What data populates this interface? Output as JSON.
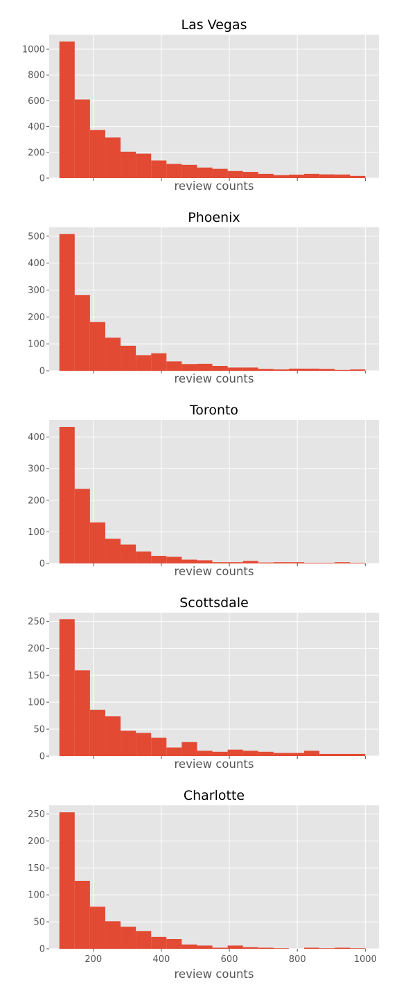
{
  "chart_data": [
    {
      "type": "bar",
      "title": "Las Vegas",
      "xlabel": "review counts",
      "ylabel": "",
      "bin_edges": [
        100,
        145,
        190,
        235,
        280,
        325,
        370,
        415,
        460,
        505,
        550,
        595,
        640,
        685,
        730,
        775,
        820,
        865,
        910,
        955,
        1000
      ],
      "values": [
        1060,
        610,
        373,
        315,
        205,
        190,
        137,
        110,
        103,
        82,
        72,
        55,
        48,
        33,
        23,
        27,
        33,
        29,
        28,
        17
      ],
      "xlim": [
        70,
        1040
      ],
      "ylim": [
        0,
        1113
      ],
      "yticks": [
        0,
        200,
        400,
        600,
        800,
        1000
      ],
      "xticks": [
        200,
        400,
        600,
        800,
        1000
      ],
      "show_xtick_labels": false,
      "bar_color": "#e24a33",
      "grid": true
    },
    {
      "type": "bar",
      "title": "Phoenix",
      "xlabel": "review counts",
      "ylabel": "",
      "bin_edges": [
        100,
        145,
        190,
        235,
        280,
        325,
        370,
        415,
        460,
        505,
        550,
        595,
        640,
        685,
        730,
        775,
        820,
        865,
        910,
        955,
        1000
      ],
      "values": [
        508,
        281,
        181,
        123,
        93,
        58,
        65,
        35,
        25,
        26,
        18,
        12,
        12,
        7,
        5,
        8,
        8,
        7,
        3,
        5
      ],
      "xlim": [
        70,
        1040
      ],
      "ylim": [
        0,
        533
      ],
      "yticks": [
        0,
        100,
        200,
        300,
        400,
        500
      ],
      "xticks": [
        200,
        400,
        600,
        800,
        1000
      ],
      "show_xtick_labels": false,
      "bar_color": "#e24a33",
      "grid": true
    },
    {
      "type": "bar",
      "title": "Toronto",
      "xlabel": "review counts",
      "ylabel": "",
      "bin_edges": [
        100,
        145,
        190,
        235,
        280,
        325,
        370,
        415,
        460,
        505,
        550,
        595,
        640,
        685,
        730,
        775,
        820,
        865,
        910,
        955,
        1000
      ],
      "values": [
        432,
        236,
        130,
        78,
        60,
        38,
        24,
        21,
        12,
        10,
        4,
        4,
        8,
        3,
        4,
        4,
        2,
        2,
        4,
        2
      ],
      "xlim": [
        70,
        1040
      ],
      "ylim": [
        0,
        454
      ],
      "yticks": [
        0,
        100,
        200,
        300,
        400
      ],
      "xticks": [
        200,
        400,
        600,
        800,
        1000
      ],
      "show_xtick_labels": false,
      "bar_color": "#e24a33",
      "grid": true
    },
    {
      "type": "bar",
      "title": "Scottsdale",
      "xlabel": "review counts",
      "ylabel": "",
      "bin_edges": [
        100,
        145,
        190,
        235,
        280,
        325,
        370,
        415,
        460,
        505,
        550,
        595,
        640,
        685,
        730,
        775,
        820,
        865,
        910,
        955,
        1000
      ],
      "values": [
        254,
        159,
        86,
        74,
        47,
        43,
        34,
        16,
        26,
        10,
        8,
        12,
        10,
        8,
        6,
        6,
        10,
        4,
        4,
        4
      ],
      "xlim": [
        70,
        1040
      ],
      "ylim": [
        0,
        266
      ],
      "yticks": [
        0,
        50,
        100,
        150,
        200,
        250
      ],
      "xticks": [
        200,
        400,
        600,
        800,
        1000
      ],
      "show_xtick_labels": false,
      "bar_color": "#e24a33",
      "grid": true
    },
    {
      "type": "bar",
      "title": "Charlotte",
      "xlabel": "review counts",
      "ylabel": "",
      "bin_edges": [
        100,
        145,
        190,
        235,
        280,
        325,
        370,
        415,
        460,
        505,
        550,
        595,
        640,
        685,
        730,
        775,
        820,
        865,
        910,
        955,
        1000
      ],
      "values": [
        253,
        126,
        78,
        51,
        41,
        33,
        22,
        18,
        8,
        6,
        2,
        6,
        3,
        2,
        1,
        0,
        2,
        1,
        2,
        1
      ],
      "xlim": [
        70,
        1040
      ],
      "ylim": [
        0,
        266
      ],
      "yticks": [
        0,
        50,
        100,
        150,
        200,
        250
      ],
      "xticks": [
        200,
        400,
        600,
        800,
        1000
      ],
      "show_xtick_labels": true,
      "bar_color": "#e24a33",
      "grid": true
    }
  ]
}
